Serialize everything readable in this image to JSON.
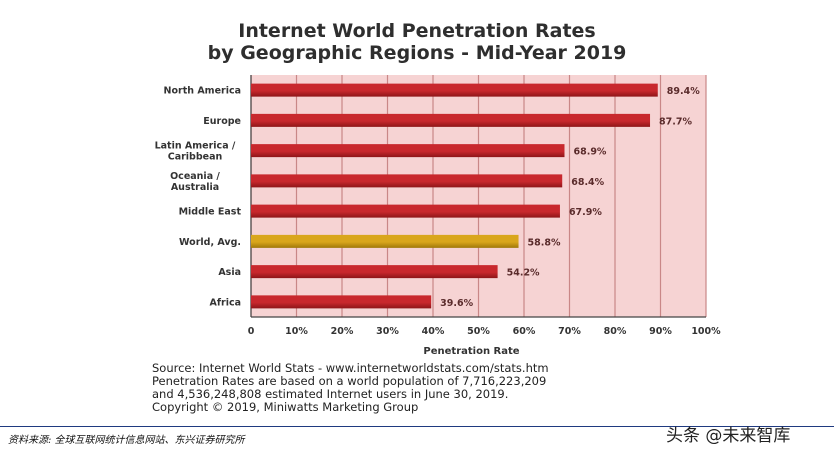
{
  "chart_data": {
    "type": "bar",
    "orientation": "horizontal",
    "title_line1": "Internet World Penetration Rates",
    "title_line2": "by Geographic Regions -  Mid-Year 2019",
    "xlabel": "Penetration Rate",
    "xlim": [
      0,
      100
    ],
    "ticks": [
      "0",
      "10%",
      "20%",
      "30%",
      "40%",
      "50%",
      "60%",
      "70%",
      "80%",
      "90%",
      "100%"
    ],
    "categories": [
      [
        "North America"
      ],
      [
        "Europe"
      ],
      [
        "Latin America /",
        "Caribbean"
      ],
      [
        "Oceania /",
        "Australia"
      ],
      [
        "Middle East"
      ],
      [
        "World, Avg."
      ],
      [
        "Asia"
      ],
      [
        "Africa"
      ]
    ],
    "values": [
      89.4,
      87.7,
      68.9,
      68.4,
      67.9,
      58.8,
      54.2,
      39.6
    ],
    "value_labels": [
      "89.4%",
      "87.7%",
      "68.9%",
      "68.4%",
      "67.9%",
      "58.8%",
      "54.2%",
      "39.6%"
    ],
    "highlight_index": 5,
    "colors": {
      "bar": "#c8282d",
      "bar_dark": "#8e1518",
      "bar_highlight": "#d9a61c",
      "bar_highlight_dark": "#a07808",
      "plot_bg": "#f6d3d3",
      "grid": "#c98787"
    }
  },
  "source": {
    "line1": "Source: Internet World Stats - www.internetworldstats.com/stats.htm",
    "line2": "Penetration Rates are based on a world population of 7,716,223,209",
    "line3": "and 4,536,248,808 estimated Internet users in June 30, 2019.",
    "line4": "Copyright © 2019, Miniwatts Marketing Group"
  },
  "footer": {
    "left": "资料来源:  全球互联网统计信息网站、东兴证券研究所",
    "right": "头条 @未来智库"
  }
}
